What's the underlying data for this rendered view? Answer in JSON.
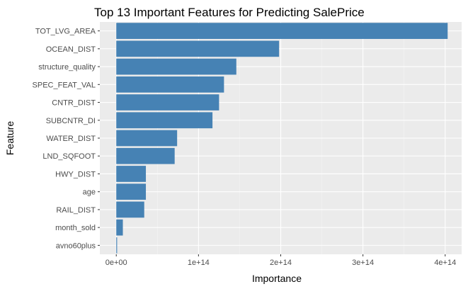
{
  "chart_data": {
    "type": "bar",
    "orientation": "horizontal",
    "title": "Top 13 Important Features for Predicting SalePrice",
    "xlabel": "Importance",
    "ylabel": "Feature",
    "categories": [
      "TOT_LVG_AREA",
      "OCEAN_DIST",
      "structure_quality",
      "SPEC_FEAT_VAL",
      "CNTR_DIST",
      "SUBCNTR_DI",
      "WATER_DIST",
      "LND_SQFOOT",
      "HWY_DIST",
      "age",
      "RAIL_DIST",
      "month_sold",
      "avno60plus"
    ],
    "values": [
      403000000000000.0,
      198000000000000.0,
      146000000000000.0,
      131000000000000.0,
      125000000000000.0,
      117000000000000.0,
      74000000000000.0,
      71000000000000.0,
      36000000000000.0,
      36000000000000.0,
      34000000000000.0,
      8000000000000.0,
      1000000000000.0
    ],
    "xlim": [
      -20000000000000.0,
      420000000000000.0
    ],
    "xticks": [
      0,
      100000000000000.0,
      200000000000000.0,
      300000000000000.0,
      400000000000000.0
    ],
    "xtick_labels": [
      "0e+00",
      "1e+14",
      "2e+14",
      "3e+14",
      "4e+14"
    ],
    "bar_color": "#4682b4",
    "panel_color": "#ebebeb",
    "grid": true
  }
}
